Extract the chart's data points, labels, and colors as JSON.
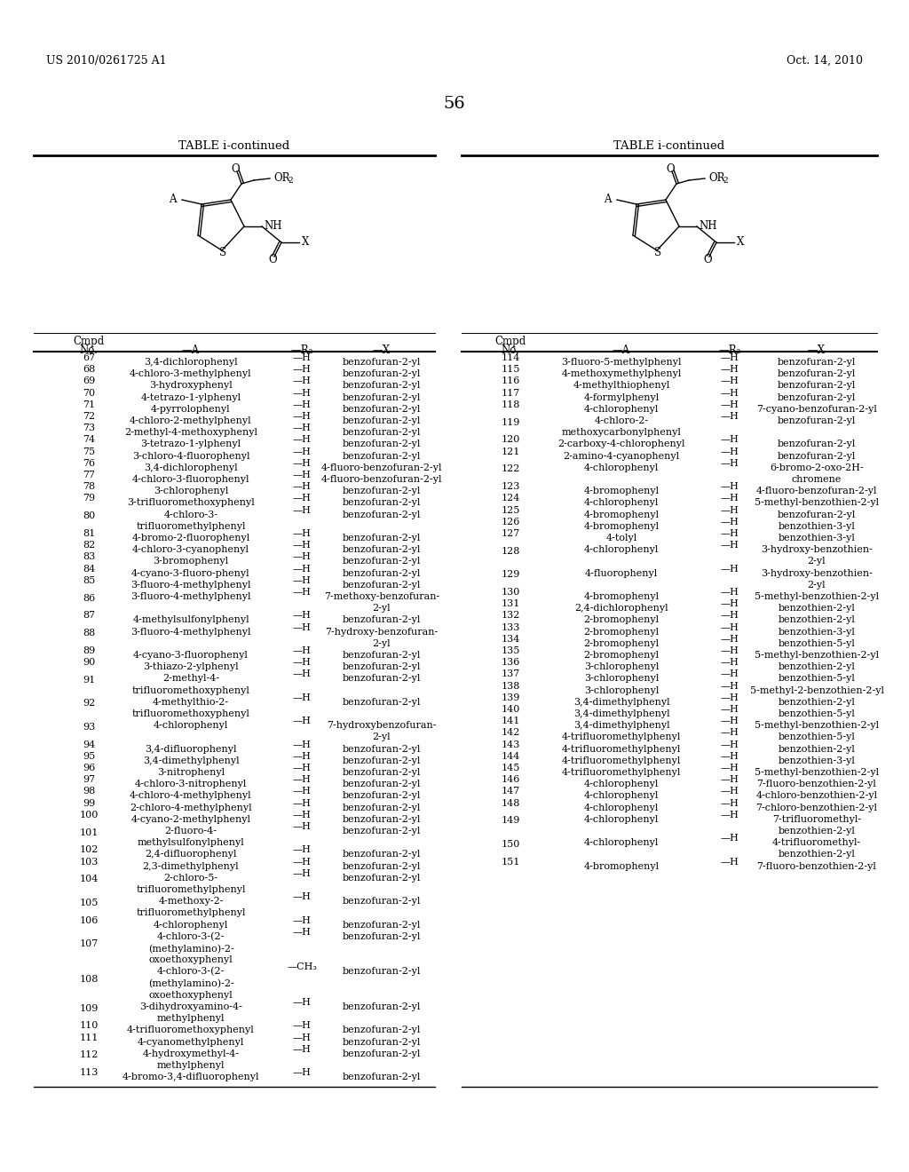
{
  "page_header_left": "US 2010/0261725 A1",
  "page_header_right": "Oct. 14, 2010",
  "page_number": "56",
  "table_title": "TABLE i-continued",
  "background_color": "#ffffff",
  "left_table": {
    "rows": [
      [
        "67",
        "3,4-dichlorophenyl",
        "—H",
        "benzofuran-2-yl"
      ],
      [
        "68",
        "4-chloro-3-methylphenyl",
        "—H",
        "benzofuran-2-yl"
      ],
      [
        "69",
        "3-hydroxyphenyl",
        "—H",
        "benzofuran-2-yl"
      ],
      [
        "70",
        "4-tetrazo-1-ylphenyl",
        "—H",
        "benzofuran-2-yl"
      ],
      [
        "71",
        "4-pyrrolophenyl",
        "—H",
        "benzofuran-2-yl"
      ],
      [
        "72",
        "4-chloro-2-methylphenyl",
        "—H",
        "benzofuran-2-yl"
      ],
      [
        "73",
        "2-methyl-4-methoxyphenyl",
        "—H",
        "benzofuran-2-yl"
      ],
      [
        "74",
        "3-tetrazo-1-ylphenyl",
        "—H",
        "benzofuran-2-yl"
      ],
      [
        "75",
        "3-chloro-4-fluorophenyl",
        "—H",
        "benzofuran-2-yl"
      ],
      [
        "76",
        "3,4-dichlorophenyl",
        "—H",
        "4-fluoro-benzofuran-2-yl"
      ],
      [
        "77",
        "4-chloro-3-fluorophenyl",
        "—H",
        "4-fluoro-benzofuran-2-yl"
      ],
      [
        "78",
        "3-chlorophenyl",
        "—H",
        "benzofuran-2-yl"
      ],
      [
        "79",
        "3-trifluoromethoxyphenyl",
        "—H",
        "benzofuran-2-yl"
      ],
      [
        "80",
        "4-chloro-3-\ntrifluoromethylphenyl",
        "—H",
        "benzofuran-2-yl"
      ],
      [
        "81",
        "4-bromo-2-fluorophenyl",
        "—H",
        "benzofuran-2-yl"
      ],
      [
        "82",
        "4-chloro-3-cyanophenyl",
        "—H",
        "benzofuran-2-yl"
      ],
      [
        "83",
        "3-bromophenyl",
        "—H",
        "benzofuran-2-yl"
      ],
      [
        "84",
        "4-cyano-3-fluoro-phenyl",
        "—H",
        "benzofuran-2-yl"
      ],
      [
        "85",
        "3-fluoro-4-methylphenyl",
        "—H",
        "benzofuran-2-yl"
      ],
      [
        "86",
        "3-fluoro-4-methylphenyl",
        "—H",
        "7-methoxy-benzofuran-\n2-yl"
      ],
      [
        "87",
        "4-methylsulfonylphenyl",
        "—H",
        "benzofuran-2-yl"
      ],
      [
        "88",
        "3-fluoro-4-methylphenyl",
        "—H",
        "7-hydroxy-benzofuran-\n2-yl"
      ],
      [
        "89",
        "4-cyano-3-fluorophenyl",
        "—H",
        "benzofuran-2-yl"
      ],
      [
        "90",
        "3-thiazo-2-ylphenyl",
        "—H",
        "benzofuran-2-yl"
      ],
      [
        "91",
        "2-methyl-4-\ntrifluoromethoxyphenyl",
        "—H",
        "benzofuran-2-yl"
      ],
      [
        "92",
        "4-methylthio-2-\ntrifluoromethoxyphenyl",
        "—H",
        "benzofuran-2-yl"
      ],
      [
        "93",
        "4-chlorophenyl",
        "—H",
        "7-hydroxybenzofuran-\n2-yl"
      ],
      [
        "94",
        "3,4-difluorophenyl",
        "—H",
        "benzofuran-2-yl"
      ],
      [
        "95",
        "3,4-dimethylphenyl",
        "—H",
        "benzofuran-2-yl"
      ],
      [
        "96",
        "3-nitrophenyl",
        "—H",
        "benzofuran-2-yl"
      ],
      [
        "97",
        "4-chloro-3-nitrophenyl",
        "—H",
        "benzofuran-2-yl"
      ],
      [
        "98",
        "4-chloro-4-methylphenyl",
        "—H",
        "benzofuran-2-yl"
      ],
      [
        "99",
        "2-chloro-4-methylphenyl",
        "—H",
        "benzofuran-2-yl"
      ],
      [
        "100",
        "4-cyano-2-methylphenyl",
        "—H",
        "benzofuran-2-yl"
      ],
      [
        "101",
        "2-fluoro-4-\nmethylsulfonylphenyl",
        "—H",
        "benzofuran-2-yl"
      ],
      [
        "102",
        "2,4-difluorophenyl",
        "—H",
        "benzofuran-2-yl"
      ],
      [
        "103",
        "2,3-dimethylphenyl",
        "—H",
        "benzofuran-2-yl"
      ],
      [
        "104",
        "2-chloro-5-\ntrifluoromethylphenyl",
        "—H",
        "benzofuran-2-yl"
      ],
      [
        "105",
        "4-methoxy-2-\ntrifluoromethylphenyl",
        "—H",
        "benzofuran-2-yl"
      ],
      [
        "106",
        "4-chlorophenyl",
        "—H",
        "benzofuran-2-yl"
      ],
      [
        "107",
        "4-chloro-3-(2-\n(methylamino)-2-\noxoethoxyphenyl",
        "—H",
        "benzofuran-2-yl"
      ],
      [
        "108",
        "4-chloro-3-(2-\n(methylamino)-2-\noxoethoxyphenyl",
        "—CH₃",
        "benzofuran-2-yl"
      ],
      [
        "109",
        "3-dihydroxyamino-4-\nmethylphenyl",
        "—H",
        "benzofuran-2-yl"
      ],
      [
        "110",
        "4-trifluoromethoxyphenyl",
        "—H",
        "benzofuran-2-yl"
      ],
      [
        "111",
        "4-cyanomethylphenyl",
        "—H",
        "benzofuran-2-yl"
      ],
      [
        "112",
        "4-hydroxymethyl-4-\nmethylphenyl",
        "—H",
        "benzofuran-2-yl"
      ],
      [
        "113",
        "4-bromo-3,4-difluorophenyl",
        "—H",
        "benzofuran-2-yl"
      ]
    ]
  },
  "right_table": {
    "rows": [
      [
        "114",
        "3-fluoro-5-methylphenyl",
        "—H",
        "benzofuran-2-yl"
      ],
      [
        "115",
        "4-methoxymethylphenyl",
        "—H",
        "benzofuran-2-yl"
      ],
      [
        "116",
        "4-methylthiophenyl",
        "—H",
        "benzofuran-2-yl"
      ],
      [
        "117",
        "4-formylphenyl",
        "—H",
        "benzofuran-2-yl"
      ],
      [
        "118",
        "4-chlorophenyl",
        "—H",
        "7-cyano-benzofuran-2-yl"
      ],
      [
        "119",
        "4-chloro-2-\nmethoxycarbonylphenyl",
        "—H",
        "benzofuran-2-yl"
      ],
      [
        "120",
        "2-carboxy-4-chlorophenyl",
        "—H",
        "benzofuran-2-yl"
      ],
      [
        "121",
        "2-amino-4-cyanophenyl",
        "—H",
        "benzofuran-2-yl"
      ],
      [
        "122",
        "4-chlorophenyl",
        "—H",
        "6-bromo-2-oxo-2H-\nchromene"
      ],
      [
        "123",
        "4-bromophenyl",
        "—H",
        "4-fluoro-benzofuran-2-yl"
      ],
      [
        "124",
        "4-chlorophenyl",
        "—H",
        "5-methyl-benzothien-2-yl"
      ],
      [
        "125",
        "4-bromophenyl",
        "—H",
        "benzofuran-2-yl"
      ],
      [
        "126",
        "4-bromophenyl",
        "—H",
        "benzothien-3-yl"
      ],
      [
        "127",
        "4-tolyl",
        "—H",
        "benzothien-3-yl"
      ],
      [
        "128",
        "4-chlorophenyl",
        "—H",
        "3-hydroxy-benzothien-\n2-yl"
      ],
      [
        "129",
        "4-fluorophenyl",
        "—H",
        "3-hydroxy-benzothien-\n2-yl"
      ],
      [
        "130",
        "4-bromophenyl",
        "—H",
        "5-methyl-benzothien-2-yl"
      ],
      [
        "131",
        "2,4-dichlorophenyl",
        "—H",
        "benzothien-2-yl"
      ],
      [
        "132",
        "2-bromophenyl",
        "—H",
        "benzothien-2-yl"
      ],
      [
        "133",
        "2-bromophenyl",
        "—H",
        "benzothien-3-yl"
      ],
      [
        "134",
        "2-bromophenyl",
        "—H",
        "benzothien-5-yl"
      ],
      [
        "135",
        "2-bromophenyl",
        "—H",
        "5-methyl-benzothien-2-yl"
      ],
      [
        "136",
        "3-chlorophenyl",
        "—H",
        "benzothien-2-yl"
      ],
      [
        "137",
        "3-chlorophenyl",
        "—H",
        "benzothien-5-yl"
      ],
      [
        "138",
        "3-chlorophenyl",
        "—H",
        "5-methyl-2-benzothien-2-yl"
      ],
      [
        "139",
        "3,4-dimethylphenyl",
        "—H",
        "benzothien-2-yl"
      ],
      [
        "140",
        "3,4-dimethylphenyl",
        "—H",
        "benzothien-5-yl"
      ],
      [
        "141",
        "3,4-dimethylphenyl",
        "—H",
        "5-methyl-benzothien-2-yl"
      ],
      [
        "142",
        "4-trifluoromethylphenyl",
        "—H",
        "benzothien-5-yl"
      ],
      [
        "143",
        "4-trifluoromethylphenyl",
        "—H",
        "benzothien-2-yl"
      ],
      [
        "144",
        "4-trifluoromethylphenyl",
        "—H",
        "benzothien-3-yl"
      ],
      [
        "145",
        "4-trifluoromethylphenyl",
        "—H",
        "5-methyl-benzothien-2-yl"
      ],
      [
        "146",
        "4-chlorophenyl",
        "—H",
        "7-fluoro-benzothien-2-yl"
      ],
      [
        "147",
        "4-chlorophenyl",
        "—H",
        "4-chloro-benzothien-2-yl"
      ],
      [
        "148",
        "4-chlorophenyl",
        "—H",
        "7-chloro-benzothien-2-yl"
      ],
      [
        "149",
        "4-chlorophenyl",
        "—H",
        "7-trifluoromethyl-\nbenzothien-2-yl"
      ],
      [
        "150",
        "4-chlorophenyl",
        "—H",
        "4-trifluoromethyl-\nbenzothien-2-yl"
      ],
      [
        "151",
        "4-bromophenyl",
        "—H",
        "7-fluoro-benzothien-2-yl"
      ]
    ]
  }
}
